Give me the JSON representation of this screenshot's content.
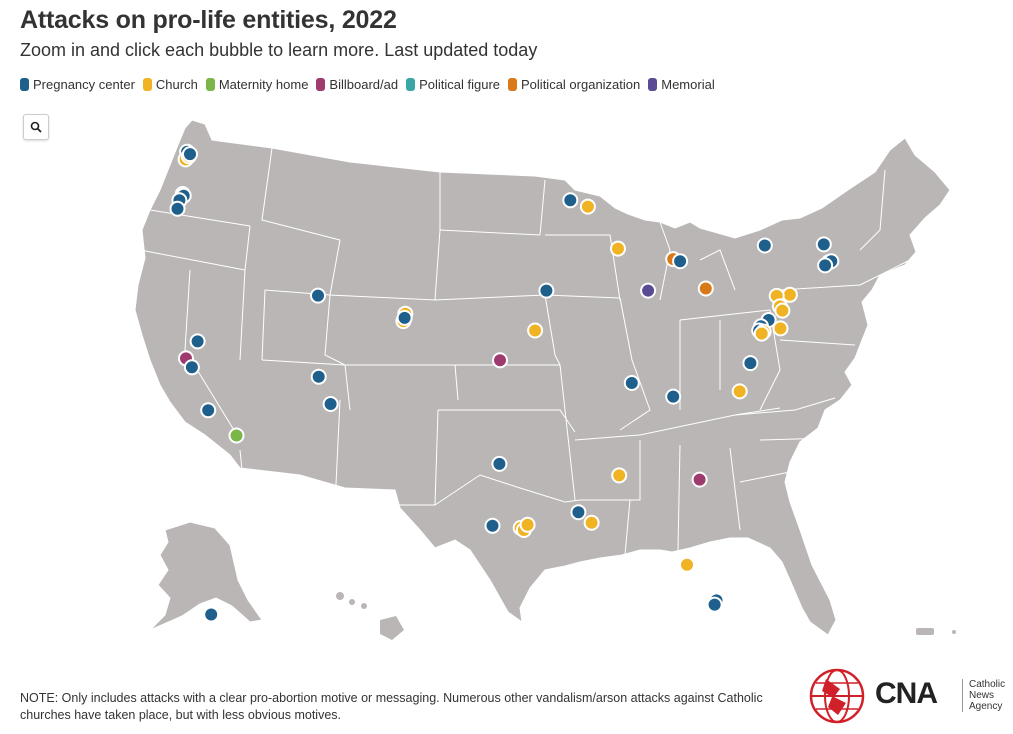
{
  "title": "Attacks on pro-life entities, 2022",
  "subtitle": "Zoom in and click each bubble to learn more. Last updated today",
  "legend": [
    {
      "label": "Pregnancy center",
      "color": "#1f5f8b"
    },
    {
      "label": "Church",
      "color": "#f0b323"
    },
    {
      "label": "Maternity home",
      "color": "#7ab648"
    },
    {
      "label": "Billboard/ad",
      "color": "#9e3a6e"
    },
    {
      "label": "Political figure",
      "color": "#3aa6a6"
    },
    {
      "label": "Political organization",
      "color": "#d9791a"
    },
    {
      "label": "Memorial",
      "color": "#5b4a94"
    }
  ],
  "search_icon": "search-icon",
  "note": "NOTE: Only includes attacks with a clear pro-abortion motive or messaging. Numerous other vandalism/arson attacks against Catholic churches have taken place, but with less obvious motives.",
  "logo": {
    "name": "CNA",
    "line1": "Catholic",
    "line2": "News",
    "line3": "Agency"
  },
  "colors": {
    "land": "#bab6b6",
    "border": "#ffffff",
    "background": "#ffffff"
  },
  "markers": [
    {
      "category": "Pregnancy center",
      "lon": -122.33,
      "lat": 47.61
    },
    {
      "category": "Church",
      "lon": -122.45,
      "lat": 47.25
    },
    {
      "category": "Church",
      "lon": -122.2,
      "lat": 47.4
    },
    {
      "category": "Pregnancy center",
      "lon": -122.1,
      "lat": 47.5
    },
    {
      "category": "Church",
      "lon": -122.68,
      "lat": 45.6
    },
    {
      "category": "Pregnancy center",
      "lon": -122.6,
      "lat": 45.52
    },
    {
      "category": "Pregnancy center",
      "lon": -122.95,
      "lat": 45.3
    },
    {
      "category": "Pregnancy center",
      "lon": -123.1,
      "lat": 44.9
    },
    {
      "category": "Billboard/ad",
      "lon": -122.42,
      "lat": 37.77
    },
    {
      "category": "Pregnancy center",
      "lon": -121.5,
      "lat": 38.58
    },
    {
      "category": "Pregnancy center",
      "lon": -121.95,
      "lat": 37.35
    },
    {
      "category": "Pregnancy center",
      "lon": -120.65,
      "lat": 35.3
    },
    {
      "category": "Maternity home",
      "lon": -118.4,
      "lat": 34.1
    },
    {
      "category": "Pregnancy center",
      "lon": -111.9,
      "lat": 40.76
    },
    {
      "category": "Pregnancy center",
      "lon": -111.85,
      "lat": 36.9
    },
    {
      "category": "Pregnancy center",
      "lon": -110.9,
      "lat": 35.6
    },
    {
      "category": "Church",
      "lon": -104.95,
      "lat": 39.9
    },
    {
      "category": "Church",
      "lon": -105.1,
      "lat": 39.55
    },
    {
      "category": "Pregnancy center",
      "lon": -105.0,
      "lat": 39.7
    },
    {
      "category": "Billboard/ad",
      "lon": -97.4,
      "lat": 37.68
    },
    {
      "category": "Church",
      "lon": -94.6,
      "lat": 39.1
    },
    {
      "category": "Pregnancy center",
      "lon": -93.7,
      "lat": 41.0
    },
    {
      "category": "Pregnancy center",
      "lon": -91.8,
      "lat": 45.3
    },
    {
      "category": "Church",
      "lon": -90.4,
      "lat": 45.0
    },
    {
      "category": "Church",
      "lon": -88.0,
      "lat": 43.0
    },
    {
      "category": "Memorial",
      "lon": -85.6,
      "lat": 41.0
    },
    {
      "category": "Political organization",
      "lon": -83.6,
      "lat": 42.5
    },
    {
      "category": "Pregnancy center",
      "lon": -83.05,
      "lat": 42.4
    },
    {
      "category": "Political organization",
      "lon": -81.0,
      "lat": 41.1
    },
    {
      "category": "Pregnancy center",
      "lon": -76.3,
      "lat": 43.15
    },
    {
      "category": "Pregnancy center",
      "lon": -71.6,
      "lat": 43.2
    },
    {
      "category": "Church",
      "lon": -71.2,
      "lat": 42.35
    },
    {
      "category": "Pregnancy center",
      "lon": -71.0,
      "lat": 42.4
    },
    {
      "category": "Pregnancy center",
      "lon": -71.5,
      "lat": 42.2
    },
    {
      "category": "Church",
      "lon": -74.3,
      "lat": 40.8
    },
    {
      "category": "Church",
      "lon": -75.35,
      "lat": 40.75
    },
    {
      "category": "Church",
      "lon": -75.1,
      "lat": 40.25
    },
    {
      "category": "Church",
      "lon": -74.9,
      "lat": 40.05
    },
    {
      "category": "Pregnancy center",
      "lon": -76.0,
      "lat": 39.6
    },
    {
      "category": "Pregnancy center",
      "lon": -76.6,
      "lat": 39.3
    },
    {
      "category": "Pregnancy center",
      "lon": -76.75,
      "lat": 39.1
    },
    {
      "category": "Church",
      "lon": -76.4,
      "lat": 39.05
    },
    {
      "category": "Church",
      "lon": -76.55,
      "lat": 38.95
    },
    {
      "category": "Church",
      "lon": -75.05,
      "lat": 39.2
    },
    {
      "category": "Pregnancy center",
      "lon": -77.45,
      "lat": 37.55
    },
    {
      "category": "Church",
      "lon": -78.3,
      "lat": 36.2
    },
    {
      "category": "Pregnancy center",
      "lon": -83.6,
      "lat": 35.95
    },
    {
      "category": "Pregnancy center",
      "lon": -86.9,
      "lat": 36.6
    },
    {
      "category": "Billboard/ad",
      "lon": -81.5,
      "lat": 32.0
    },
    {
      "category": "Church",
      "lon": -87.9,
      "lat": 32.2
    },
    {
      "category": "Pregnancy center",
      "lon": -97.45,
      "lat": 32.75
    },
    {
      "category": "Pregnancy center",
      "lon": -98.0,
      "lat": 29.8
    },
    {
      "category": "Church",
      "lon": -95.75,
      "lat": 29.7
    },
    {
      "category": "Church",
      "lon": -95.5,
      "lat": 29.6
    },
    {
      "category": "Church",
      "lon": -95.2,
      "lat": 29.85
    },
    {
      "category": "Pregnancy center",
      "lon": -91.15,
      "lat": 30.45
    },
    {
      "category": "Church",
      "lon": -90.1,
      "lat": 29.95
    },
    {
      "category": "Church",
      "lon": -82.5,
      "lat": 27.95
    },
    {
      "category": "Pregnancy center",
      "lon": -80.15,
      "lat": 26.25
    },
    {
      "category": "Pregnancy center",
      "lon": -80.3,
      "lat": 26.05
    },
    {
      "category": "Pregnancy center",
      "lon": -149.9,
      "lat": 61.2
    }
  ]
}
